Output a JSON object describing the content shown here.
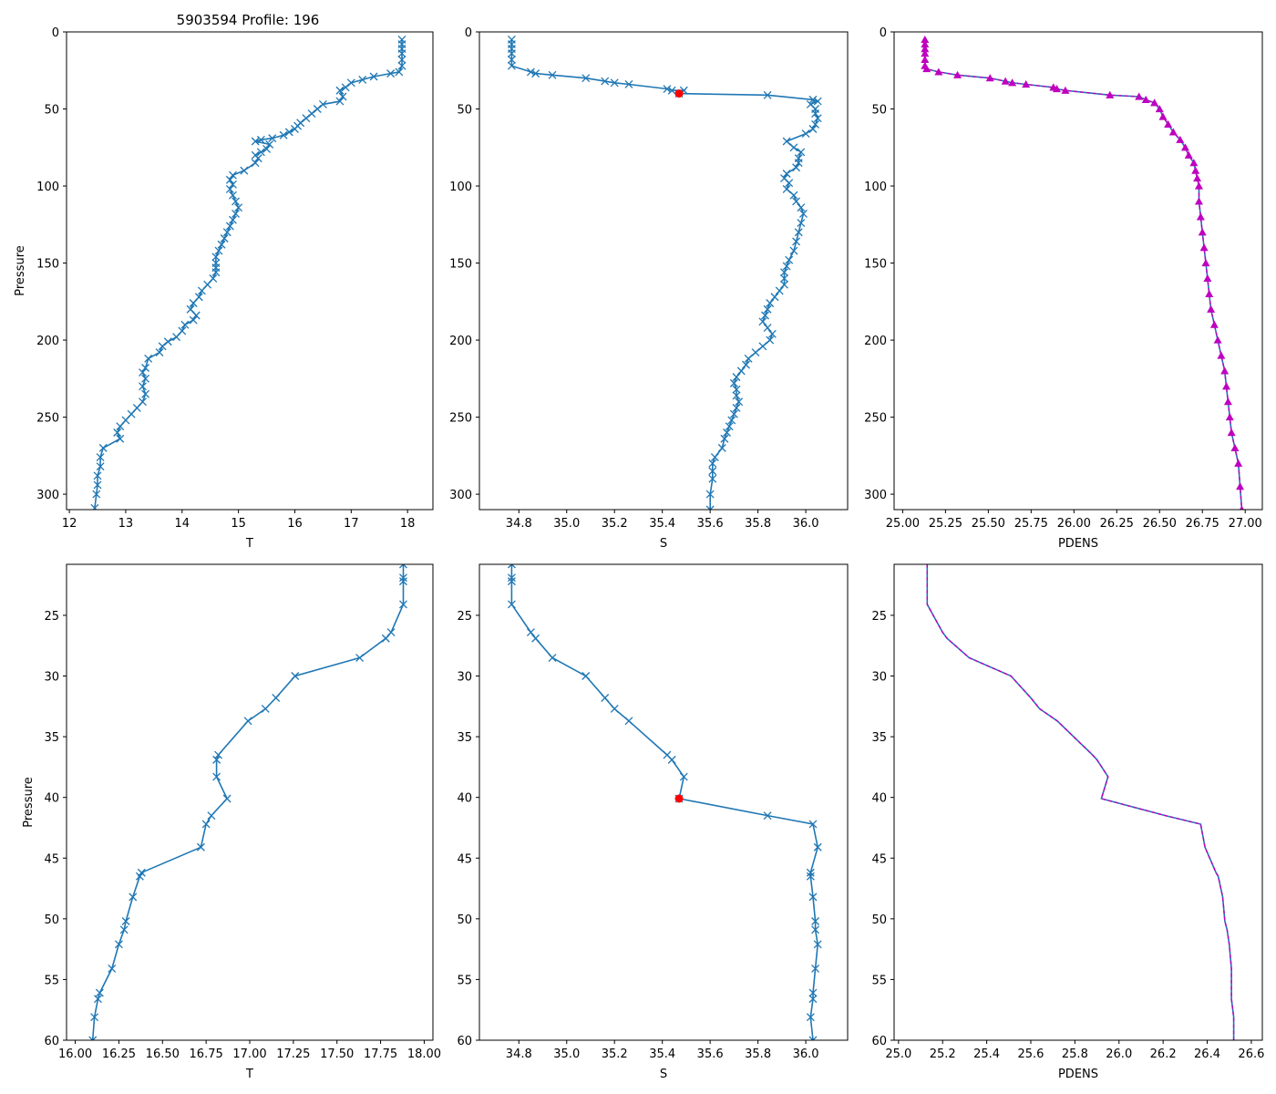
{
  "chart_data": [
    {
      "id": "top_T",
      "type": "line",
      "title": "5903594 Profile: 196",
      "xlabel": "T",
      "ylabel": "Pressure",
      "xlim": [
        11.95,
        18.45
      ],
      "ylim": [
        310,
        0
      ],
      "xticks": [
        12,
        13,
        14,
        15,
        16,
        17,
        18
      ],
      "yticks": [
        0,
        50,
        100,
        150,
        200,
        250,
        300
      ],
      "xtick_labels": [
        "12",
        "13",
        "14",
        "15",
        "16",
        "17",
        "18"
      ],
      "ytick_labels": [
        "0",
        "50",
        "100",
        "150",
        "200",
        "250",
        "300"
      ],
      "series": [
        {
          "name": "T",
          "color": "#1f77b4",
          "marker": "x",
          "x": [
            17.9,
            17.9,
            17.9,
            17.9,
            17.9,
            17.9,
            17.85,
            17.7,
            17.4,
            17.2,
            17.0,
            16.9,
            16.8,
            16.85,
            16.8,
            16.5,
            16.4,
            16.3,
            16.2,
            16.1,
            16.05,
            16.0,
            15.9,
            15.8,
            15.6,
            15.4,
            15.3,
            15.55,
            15.5,
            15.4,
            15.3,
            15.35,
            15.3,
            15.1,
            14.9,
            14.85,
            14.9,
            14.85,
            14.9,
            14.95,
            15.0,
            14.95,
            14.9,
            14.85,
            14.8,
            14.75,
            14.7,
            14.65,
            14.6,
            14.6,
            14.6,
            14.6,
            14.55,
            14.45,
            14.35,
            14.3,
            14.2,
            14.15,
            14.25,
            14.2,
            14.05,
            14.0,
            13.9,
            13.75,
            13.65,
            13.6,
            13.4,
            13.35,
            13.3,
            13.35,
            13.3,
            13.35,
            13.3,
            13.2,
            13.1,
            13.0,
            12.9,
            12.85,
            12.9,
            12.6,
            12.55,
            12.55,
            12.5,
            12.5,
            12.48,
            12.45
          ],
          "y": [
            5,
            8,
            11,
            14,
            18,
            22,
            26,
            27,
            29,
            31,
            33,
            36,
            38,
            42,
            45,
            47,
            50,
            53,
            56,
            59,
            61,
            63,
            65,
            67,
            69,
            70,
            71,
            73,
            76,
            78,
            80,
            82,
            85,
            90,
            93,
            96,
            99,
            102,
            106,
            110,
            114,
            118,
            122,
            126,
            130,
            134,
            138,
            142,
            146,
            150,
            153,
            156,
            160,
            164,
            168,
            172,
            176,
            180,
            184,
            187,
            190,
            194,
            198,
            201,
            204,
            208,
            212,
            218,
            221,
            225,
            230,
            235,
            240,
            244,
            248,
            252,
            256,
            260,
            264,
            270,
            276,
            282,
            288,
            294,
            300,
            309
          ]
        }
      ]
    },
    {
      "id": "top_S",
      "type": "line",
      "title": "",
      "xlabel": "S",
      "ylabel": "",
      "xlim": [
        34.635,
        36.175
      ],
      "ylim": [
        310,
        0
      ],
      "xticks": [
        34.8,
        35.0,
        35.2,
        35.4,
        35.6,
        35.8,
        36.0
      ],
      "yticks": [
        0,
        50,
        100,
        150,
        200,
        250,
        300
      ],
      "xtick_labels": [
        "34.8",
        "35.0",
        "35.2",
        "35.4",
        "35.6",
        "35.8",
        "36.0"
      ],
      "ytick_labels": [
        "0",
        "50",
        "100",
        "150",
        "200",
        "250",
        "300"
      ],
      "series": [
        {
          "name": "S",
          "color": "#1f77b4",
          "marker": "x",
          "x": [
            34.77,
            34.77,
            34.77,
            34.77,
            34.77,
            34.77,
            34.85,
            34.87,
            34.94,
            35.08,
            35.16,
            35.2,
            35.26,
            35.42,
            35.44,
            35.49,
            35.47,
            35.84,
            36.03,
            36.05,
            36.02,
            36.04,
            36.04,
            36.05,
            36.04,
            36.03,
            36.0,
            35.92,
            35.95,
            35.98,
            35.97,
            35.97,
            35.96,
            35.92,
            35.91,
            35.93,
            35.92,
            35.95,
            35.96,
            35.98,
            35.99,
            35.98,
            35.97,
            35.96,
            35.95,
            35.93,
            35.92,
            35.91,
            35.91,
            35.91,
            35.89,
            35.87,
            35.85,
            35.84,
            35.83,
            35.82,
            35.84,
            35.86,
            35.85,
            35.82,
            35.79,
            35.76,
            35.75,
            35.73,
            35.71,
            35.7,
            35.71,
            35.71,
            35.72,
            35.71,
            35.7,
            35.69,
            35.68,
            35.67,
            35.66,
            35.65,
            35.62,
            35.61,
            35.61,
            35.61,
            35.6,
            35.6
          ],
          "y": [
            5,
            8,
            11,
            14,
            18,
            22,
            26,
            27,
            28,
            30,
            32,
            33,
            34,
            37,
            38,
            38,
            40,
            41,
            44,
            45,
            47,
            50,
            53,
            56,
            60,
            63,
            66,
            71,
            75,
            78,
            82,
            85,
            88,
            92,
            95,
            98,
            102,
            106,
            110,
            114,
            118,
            124,
            130,
            136,
            142,
            148,
            152,
            156,
            160,
            164,
            168,
            172,
            176,
            180,
            184,
            188,
            192,
            196,
            200,
            204,
            208,
            212,
            216,
            220,
            224,
            228,
            232,
            236,
            240,
            244,
            248,
            252,
            256,
            260,
            264,
            270,
            276,
            280,
            285,
            290,
            300,
            310
          ]
        },
        {
          "name": "MLD point",
          "color": "#ff0000",
          "marker": "o",
          "x": [
            35.47
          ],
          "y": [
            40
          ]
        }
      ]
    },
    {
      "id": "top_PDENS",
      "type": "line",
      "title": "",
      "xlabel": "PDENS",
      "ylabel": "",
      "xlim": [
        24.95,
        27.1
      ],
      "ylim": [
        310,
        0
      ],
      "xticks": [
        25.0,
        25.25,
        25.5,
        25.75,
        26.0,
        26.25,
        26.5,
        26.75,
        27.0
      ],
      "yticks": [
        0,
        50,
        100,
        150,
        200,
        250,
        300
      ],
      "xtick_labels": [
        "25.00",
        "25.25",
        "25.50",
        "25.75",
        "26.00",
        "26.25",
        "26.50",
        "26.75",
        "27.00"
      ],
      "ytick_labels": [
        "0",
        "50",
        "100",
        "150",
        "200",
        "250",
        "300"
      ],
      "series": [
        {
          "name": "PDENS",
          "color": "#1f77b4",
          "marker": "^",
          "marker_color": "#bf00bf",
          "dashed_overlay": "#bf00bf",
          "x": [
            25.13,
            25.13,
            25.13,
            25.13,
            25.13,
            25.13,
            25.14,
            25.21,
            25.32,
            25.51,
            25.6,
            25.64,
            25.72,
            25.88,
            25.9,
            25.95,
            26.21,
            26.38,
            26.42,
            26.47,
            26.5,
            26.52,
            26.55,
            26.58,
            26.62,
            26.65,
            26.67,
            26.7,
            26.71,
            26.72,
            26.73,
            26.73,
            26.74,
            26.75,
            26.76,
            26.77,
            26.78,
            26.79,
            26.8,
            26.82,
            26.84,
            26.86,
            26.88,
            26.89,
            26.9,
            26.91,
            26.92,
            26.94,
            26.96,
            26.97,
            26.98
          ],
          "y": [
            5,
            8,
            11,
            14,
            18,
            22,
            24,
            26,
            28,
            30,
            32,
            33,
            34,
            36,
            37,
            38,
            41,
            42,
            44,
            46,
            50,
            55,
            60,
            65,
            70,
            75,
            80,
            85,
            90,
            95,
            100,
            110,
            120,
            130,
            140,
            150,
            160,
            170,
            180,
            190,
            200,
            210,
            220,
            230,
            240,
            250,
            260,
            270,
            280,
            295,
            310
          ]
        }
      ]
    },
    {
      "id": "bottom_T",
      "type": "line",
      "title": "",
      "xlabel": "T",
      "ylabel": "Pressure",
      "xlim": [
        15.95,
        18.05
      ],
      "ylim": [
        60,
        20.8
      ],
      "xticks": [
        16.0,
        16.25,
        16.5,
        16.75,
        17.0,
        17.25,
        17.5,
        17.75,
        18.0
      ],
      "yticks": [
        25,
        30,
        35,
        40,
        45,
        50,
        55,
        60
      ],
      "xtick_labels": [
        "16.00",
        "16.25",
        "16.50",
        "16.75",
        "17.00",
        "17.25",
        "17.50",
        "17.75",
        "18.00"
      ],
      "ytick_labels": [
        "25",
        "30",
        "35",
        "40",
        "45",
        "50",
        "55",
        "60"
      ],
      "series": [
        {
          "name": "T",
          "color": "#1f77b4",
          "marker": "x",
          "x": [
            17.88,
            17.88,
            17.88,
            17.88,
            17.81,
            17.78,
            17.63,
            17.26,
            17.15,
            17.09,
            16.99,
            16.82,
            16.81,
            16.81,
            16.87,
            16.78,
            16.75,
            16.72,
            16.38,
            16.37,
            16.33,
            16.29,
            16.28,
            16.25,
            16.21,
            16.14,
            16.13,
            16.11,
            16.1
          ],
          "y": [
            20.8,
            21.9,
            22.2,
            24.1,
            26.4,
            26.9,
            28.5,
            30.0,
            31.8,
            32.7,
            33.7,
            36.5,
            36.9,
            38.3,
            40.1,
            41.5,
            42.2,
            44.1,
            46.2,
            46.5,
            48.2,
            50.2,
            50.9,
            52.1,
            54.1,
            56.1,
            56.6,
            58.1,
            60.0
          ]
        }
      ]
    },
    {
      "id": "bottom_S",
      "type": "line",
      "title": "",
      "xlabel": "S",
      "ylabel": "",
      "xlim": [
        34.635,
        36.175
      ],
      "ylim": [
        60,
        20.8
      ],
      "xticks": [
        34.8,
        35.0,
        35.2,
        35.4,
        35.6,
        35.8,
        36.0
      ],
      "yticks": [
        25,
        30,
        35,
        40,
        45,
        50,
        55,
        60
      ],
      "xtick_labels": [
        "34.8",
        "35.0",
        "35.2",
        "35.4",
        "35.6",
        "35.8",
        "36.0"
      ],
      "ytick_labels": [
        "25",
        "30",
        "35",
        "40",
        "45",
        "50",
        "55",
        "60"
      ],
      "series": [
        {
          "name": "S",
          "color": "#1f77b4",
          "marker": "x",
          "x": [
            34.77,
            34.77,
            34.77,
            34.77,
            34.85,
            34.87,
            34.94,
            35.08,
            35.16,
            35.2,
            35.26,
            35.42,
            35.44,
            35.49,
            35.47,
            35.84,
            36.03,
            36.05,
            36.02,
            36.02,
            36.03,
            36.04,
            36.04,
            36.05,
            36.04,
            36.03,
            36.03,
            36.02,
            36.03
          ],
          "y": [
            20.8,
            21.9,
            22.2,
            24.1,
            26.4,
            26.9,
            28.5,
            30.0,
            31.8,
            32.7,
            33.7,
            36.5,
            36.9,
            38.3,
            40.1,
            41.5,
            42.2,
            44.1,
            46.2,
            46.5,
            48.2,
            50.2,
            50.9,
            52.1,
            54.1,
            56.1,
            56.6,
            58.1,
            60.0
          ]
        },
        {
          "name": "MLD point",
          "color": "#ff0000",
          "marker": "o",
          "x": [
            35.47
          ],
          "y": [
            40.1
          ]
        }
      ]
    },
    {
      "id": "bottom_PDENS",
      "type": "line",
      "title": "",
      "xlabel": "PDENS",
      "ylabel": "",
      "xlim": [
        24.98,
        26.65
      ],
      "ylim": [
        60,
        20.8
      ],
      "xticks": [
        25.0,
        25.2,
        25.4,
        25.6,
        25.8,
        26.0,
        26.2,
        26.4,
        26.6
      ],
      "yticks": [
        25,
        30,
        35,
        40,
        45,
        50,
        55,
        60
      ],
      "xtick_labels": [
        "25.0",
        "25.2",
        "25.4",
        "25.6",
        "25.8",
        "26.0",
        "26.2",
        "26.4",
        "26.6"
      ],
      "ytick_labels": [
        "25",
        "30",
        "35",
        "40",
        "45",
        "50",
        "55",
        "60"
      ],
      "series": [
        {
          "name": "PDENS",
          "color": "#1f77b4",
          "marker": "none",
          "dashed_overlay": "#bf00bf",
          "x": [
            25.13,
            25.13,
            25.13,
            25.13,
            25.2,
            25.22,
            25.32,
            25.51,
            25.6,
            25.64,
            25.72,
            25.88,
            25.9,
            25.95,
            25.92,
            26.21,
            26.37,
            26.39,
            26.44,
            26.45,
            26.47,
            26.48,
            26.49,
            26.5,
            26.51,
            26.51,
            26.51,
            26.52,
            26.52
          ],
          "y": [
            20.8,
            21.9,
            22.2,
            24.1,
            26.4,
            26.9,
            28.5,
            30.0,
            31.8,
            32.7,
            33.7,
            36.5,
            36.9,
            38.3,
            40.1,
            41.5,
            42.2,
            44.1,
            46.2,
            46.5,
            48.2,
            50.2,
            50.9,
            52.1,
            54.1,
            56.1,
            56.6,
            58.1,
            60.0
          ]
        }
      ]
    }
  ]
}
